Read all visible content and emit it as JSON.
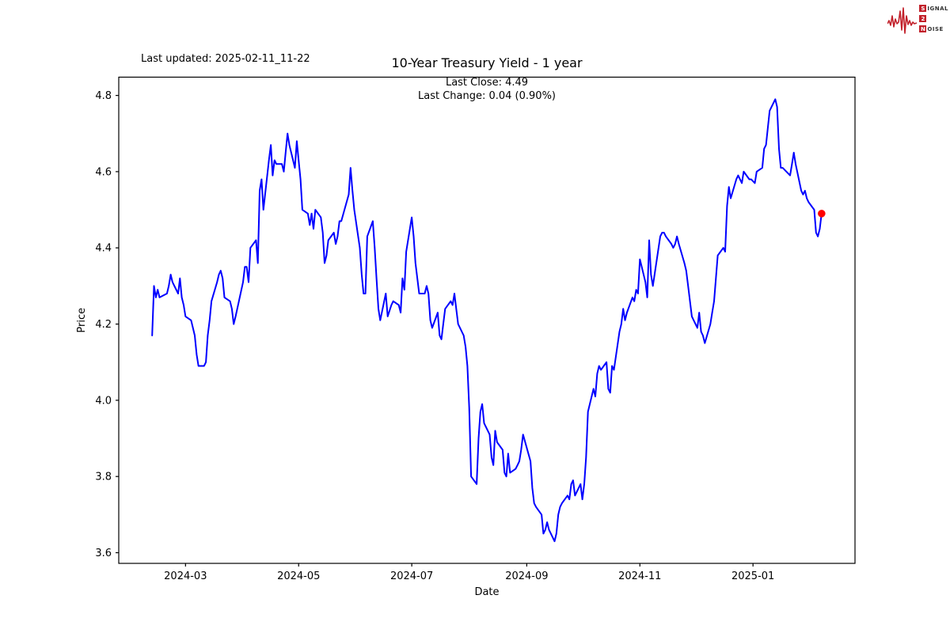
{
  "header": {
    "last_updated": "Last updated: 2025-02-11_11-22",
    "title": "10-Year Treasury Yield - 1 year",
    "subtitle_close": "Last Close: 4.49",
    "subtitle_change": "Last Change: 0.04 (0.90%)"
  },
  "logo": {
    "accent_color": "#c2202a",
    "rows": [
      {
        "boxed": "S",
        "rest": "IGNAL"
      },
      {
        "boxed": "2",
        "rest": ""
      },
      {
        "boxed": "N",
        "rest": "OISE"
      }
    ]
  },
  "chart_data": {
    "type": "line",
    "title": "10-Year Treasury Yield - 1 year",
    "xlabel": "Date",
    "ylabel": "Price",
    "legend": "none",
    "grid": false,
    "line_color": "#0000ff",
    "last_point_color": "#ff0000",
    "axis_color": "#000000",
    "last_close": 4.49,
    "last_change": 0.04,
    "last_change_pct": "0.90%",
    "ylim": [
      3.572,
      4.848
    ],
    "xlim": [
      "2024-01-25",
      "2025-02-25"
    ],
    "yticks": [
      3.6,
      3.8,
      4.0,
      4.2,
      4.4,
      4.6,
      4.8
    ],
    "xticks": [
      {
        "date": "2024-03-01",
        "label": "2024-03"
      },
      {
        "date": "2024-05-01",
        "label": "2024-05"
      },
      {
        "date": "2024-07-01",
        "label": "2024-07"
      },
      {
        "date": "2024-09-01",
        "label": "2024-09"
      },
      {
        "date": "2024-11-01",
        "label": "2024-11"
      },
      {
        "date": "2025-01-01",
        "label": "2025-01"
      }
    ],
    "dates": [
      "2024-02-12",
      "2024-02-13",
      "2024-02-14",
      "2024-02-15",
      "2024-02-16",
      "2024-02-20",
      "2024-02-21",
      "2024-02-22",
      "2024-02-23",
      "2024-02-26",
      "2024-02-27",
      "2024-02-28",
      "2024-02-29",
      "2024-03-01",
      "2024-03-04",
      "2024-03-05",
      "2024-03-06",
      "2024-03-07",
      "2024-03-08",
      "2024-03-11",
      "2024-03-12",
      "2024-03-13",
      "2024-03-14",
      "2024-03-15",
      "2024-03-18",
      "2024-03-19",
      "2024-03-20",
      "2024-03-21",
      "2024-03-22",
      "2024-03-25",
      "2024-03-26",
      "2024-03-27",
      "2024-03-28",
      "2024-04-01",
      "2024-04-02",
      "2024-04-03",
      "2024-04-04",
      "2024-04-05",
      "2024-04-08",
      "2024-04-09",
      "2024-04-10",
      "2024-04-11",
      "2024-04-12",
      "2024-04-15",
      "2024-04-16",
      "2024-04-17",
      "2024-04-18",
      "2024-04-19",
      "2024-04-22",
      "2024-04-23",
      "2024-04-24",
      "2024-04-25",
      "2024-04-26",
      "2024-04-29",
      "2024-04-30",
      "2024-05-01",
      "2024-05-02",
      "2024-05-03",
      "2024-05-06",
      "2024-05-07",
      "2024-05-08",
      "2024-05-09",
      "2024-05-10",
      "2024-05-13",
      "2024-05-14",
      "2024-05-15",
      "2024-05-16",
      "2024-05-17",
      "2024-05-20",
      "2024-05-21",
      "2024-05-22",
      "2024-05-23",
      "2024-05-24",
      "2024-05-28",
      "2024-05-29",
      "2024-05-30",
      "2024-05-31",
      "2024-06-03",
      "2024-06-04",
      "2024-06-05",
      "2024-06-06",
      "2024-06-07",
      "2024-06-10",
      "2024-06-11",
      "2024-06-12",
      "2024-06-13",
      "2024-06-14",
      "2024-06-17",
      "2024-06-18",
      "2024-06-20",
      "2024-06-21",
      "2024-06-24",
      "2024-06-25",
      "2024-06-26",
      "2024-06-27",
      "2024-06-28",
      "2024-07-01",
      "2024-07-02",
      "2024-07-03",
      "2024-07-05",
      "2024-07-08",
      "2024-07-09",
      "2024-07-10",
      "2024-07-11",
      "2024-07-12",
      "2024-07-15",
      "2024-07-16",
      "2024-07-17",
      "2024-07-18",
      "2024-07-19",
      "2024-07-22",
      "2024-07-23",
      "2024-07-24",
      "2024-07-25",
      "2024-07-26",
      "2024-07-29",
      "2024-07-30",
      "2024-07-31",
      "2024-08-01",
      "2024-08-02",
      "2024-08-05",
      "2024-08-06",
      "2024-08-07",
      "2024-08-08",
      "2024-08-09",
      "2024-08-12",
      "2024-08-13",
      "2024-08-14",
      "2024-08-15",
      "2024-08-16",
      "2024-08-19",
      "2024-08-20",
      "2024-08-21",
      "2024-08-22",
      "2024-08-23",
      "2024-08-26",
      "2024-08-27",
      "2024-08-28",
      "2024-08-29",
      "2024-08-30",
      "2024-09-03",
      "2024-09-04",
      "2024-09-05",
      "2024-09-06",
      "2024-09-09",
      "2024-09-10",
      "2024-09-11",
      "2024-09-12",
      "2024-09-13",
      "2024-09-16",
      "2024-09-17",
      "2024-09-18",
      "2024-09-19",
      "2024-09-20",
      "2024-09-23",
      "2024-09-24",
      "2024-09-25",
      "2024-09-26",
      "2024-09-27",
      "2024-09-30",
      "2024-10-01",
      "2024-10-02",
      "2024-10-03",
      "2024-10-04",
      "2024-10-07",
      "2024-10-08",
      "2024-10-09",
      "2024-10-10",
      "2024-10-11",
      "2024-10-14",
      "2024-10-15",
      "2024-10-16",
      "2024-10-17",
      "2024-10-18",
      "2024-10-21",
      "2024-10-22",
      "2024-10-23",
      "2024-10-24",
      "2024-10-25",
      "2024-10-28",
      "2024-10-29",
      "2024-10-30",
      "2024-10-31",
      "2024-11-01",
      "2024-11-04",
      "2024-11-05",
      "2024-11-06",
      "2024-11-07",
      "2024-11-08",
      "2024-11-12",
      "2024-11-13",
      "2024-11-14",
      "2024-11-15",
      "2024-11-18",
      "2024-11-19",
      "2024-11-20",
      "2024-11-21",
      "2024-11-22",
      "2024-11-25",
      "2024-11-26",
      "2024-11-27",
      "2024-11-29",
      "2024-12-02",
      "2024-12-03",
      "2024-12-04",
      "2024-12-05",
      "2024-12-06",
      "2024-12-09",
      "2024-12-10",
      "2024-12-11",
      "2024-12-12",
      "2024-12-13",
      "2024-12-16",
      "2024-12-17",
      "2024-12-18",
      "2024-12-19",
      "2024-12-20",
      "2024-12-23",
      "2024-12-24",
      "2024-12-26",
      "2024-12-27",
      "2024-12-30",
      "2024-12-31",
      "2025-01-02",
      "2025-01-03",
      "2025-01-06",
      "2025-01-07",
      "2025-01-08",
      "2025-01-10",
      "2025-01-13",
      "2025-01-14",
      "2025-01-15",
      "2025-01-16",
      "2025-01-17",
      "2025-01-21",
      "2025-01-22",
      "2025-01-23",
      "2025-01-24",
      "2025-01-27",
      "2025-01-28",
      "2025-01-29",
      "2025-01-30",
      "2025-01-31",
      "2025-02-03",
      "2025-02-04",
      "2025-02-05",
      "2025-02-06",
      "2025-02-07"
    ],
    "values": [
      4.17,
      4.3,
      4.27,
      4.29,
      4.27,
      4.28,
      4.3,
      4.33,
      4.31,
      4.28,
      4.32,
      4.27,
      4.25,
      4.22,
      4.21,
      4.19,
      4.17,
      4.12,
      4.09,
      4.09,
      4.1,
      4.17,
      4.21,
      4.26,
      4.31,
      4.33,
      4.34,
      4.32,
      4.27,
      4.26,
      4.24,
      4.2,
      4.22,
      4.31,
      4.35,
      4.35,
      4.31,
      4.4,
      4.42,
      4.36,
      4.55,
      4.58,
      4.5,
      4.63,
      4.67,
      4.59,
      4.63,
      4.62,
      4.62,
      4.6,
      4.65,
      4.7,
      4.67,
      4.61,
      4.68,
      4.63,
      4.58,
      4.5,
      4.49,
      4.46,
      4.49,
      4.45,
      4.5,
      4.48,
      4.44,
      4.36,
      4.38,
      4.42,
      4.44,
      4.41,
      4.43,
      4.47,
      4.47,
      4.54,
      4.61,
      4.55,
      4.5,
      4.4,
      4.33,
      4.28,
      4.28,
      4.43,
      4.47,
      4.4,
      4.32,
      4.24,
      4.21,
      4.28,
      4.22,
      4.25,
      4.26,
      4.25,
      4.23,
      4.32,
      4.29,
      4.39,
      4.48,
      4.43,
      4.36,
      4.28,
      4.28,
      4.3,
      4.28,
      4.21,
      4.19,
      4.23,
      4.17,
      4.16,
      4.2,
      4.24,
      4.26,
      4.25,
      4.28,
      4.24,
      4.2,
      4.17,
      4.14,
      4.09,
      3.98,
      3.8,
      3.78,
      3.9,
      3.97,
      3.99,
      3.94,
      3.91,
      3.85,
      3.83,
      3.92,
      3.89,
      3.87,
      3.81,
      3.8,
      3.86,
      3.81,
      3.82,
      3.83,
      3.84,
      3.87,
      3.91,
      3.84,
      3.77,
      3.73,
      3.72,
      3.7,
      3.65,
      3.66,
      3.68,
      3.66,
      3.63,
      3.65,
      3.7,
      3.72,
      3.73,
      3.75,
      3.74,
      3.78,
      3.79,
      3.75,
      3.78,
      3.74,
      3.78,
      3.85,
      3.97,
      4.03,
      4.01,
      4.07,
      4.09,
      4.08,
      4.1,
      4.03,
      4.02,
      4.09,
      4.08,
      4.18,
      4.2,
      4.24,
      4.21,
      4.23,
      4.27,
      4.26,
      4.29,
      4.28,
      4.37,
      4.31,
      4.27,
      4.42,
      4.33,
      4.3,
      4.43,
      4.44,
      4.44,
      4.43,
      4.41,
      4.4,
      4.41,
      4.43,
      4.41,
      4.36,
      4.34,
      4.3,
      4.22,
      4.19,
      4.23,
      4.18,
      4.17,
      4.15,
      4.2,
      4.23,
      4.26,
      4.32,
      4.38,
      4.4,
      4.39,
      4.51,
      4.56,
      4.53,
      4.58,
      4.59,
      4.57,
      4.6,
      4.58,
      4.58,
      4.57,
      4.6,
      4.61,
      4.66,
      4.67,
      4.76,
      4.79,
      4.77,
      4.66,
      4.61,
      4.61,
      4.59,
      4.62,
      4.65,
      4.62,
      4.55,
      4.54,
      4.55,
      4.53,
      4.52,
      4.5,
      4.44,
      4.43,
      4.45,
      4.49
    ]
  }
}
